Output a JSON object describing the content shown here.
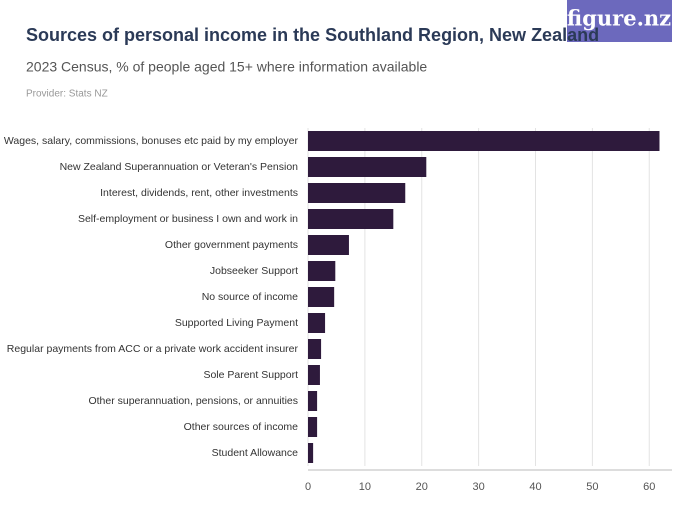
{
  "chart_data": {
    "type": "hbar",
    "title": "Sources of personal income in the Southland Region, New Zealand",
    "subtitle": "2023 Census, % of people aged 15+ where information available",
    "source": "Provider: Stats NZ",
    "logo": "figure.nz",
    "categories": [
      "Wages, salary, commissions, bonuses etc paid by my employer",
      "New Zealand Superannuation or Veteran's Pension",
      "Interest, dividends, rent, other investments",
      "Self-employment or business I own and work in",
      "Other government payments",
      "Jobseeker Support",
      "No source of income",
      "Supported Living Payment",
      "Regular payments from ACC or a private work accident insurer",
      "Sole Parent Support",
      "Other superannuation, pensions, or annuities",
      "Other sources of income",
      "Student Allowance"
    ],
    "values": [
      61.8,
      20.8,
      17.1,
      15.0,
      7.2,
      4.8,
      4.6,
      3.0,
      2.3,
      2.1,
      1.6,
      1.6,
      0.9
    ],
    "color": "#2e1a3c",
    "xlim": [
      0,
      64
    ],
    "xticks": [
      0,
      10,
      20,
      30,
      40,
      50,
      60
    ],
    "grid": true
  }
}
